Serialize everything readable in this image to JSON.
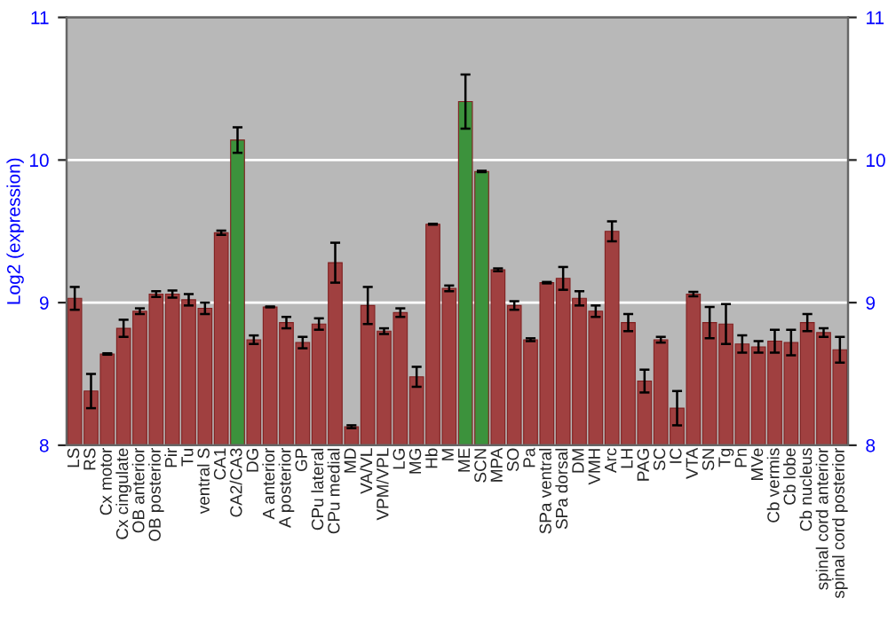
{
  "chart_data": {
    "type": "bar",
    "ylabel": "Log2 (expression)",
    "categories": [
      "LS",
      "RS",
      "Cx motor",
      "Cx cingulate",
      "OB anterior",
      "OB posterior",
      "Pir",
      "Tu",
      "ventral S",
      "CA1",
      "CA2/CA3",
      "DG",
      "A anterior",
      "A posterior",
      "GP",
      "CPu lateral",
      "CPu medial",
      "MD",
      "VA/VL",
      "VPM/VPL",
      "LG",
      "MG",
      "Hb",
      "M",
      "ME",
      "SCN",
      "MPA",
      "SO",
      "Pa",
      "SPa ventral",
      "SPa dorsal",
      "DM",
      "VMH",
      "Arc",
      "LH",
      "PAG",
      "SC",
      "IC",
      "VTA",
      "SN",
      "Tg",
      "Pn",
      "MVe",
      "Cb vermis",
      "Cb lobe",
      "Cb nucleus",
      "spinal cord anterior",
      "spinal cord posterior"
    ],
    "values": [
      9.03,
      8.38,
      8.64,
      8.82,
      8.94,
      9.06,
      9.06,
      9.02,
      8.96,
      9.49,
      10.14,
      8.74,
      8.97,
      8.86,
      8.72,
      8.85,
      9.28,
      8.13,
      8.98,
      8.8,
      8.93,
      8.48,
      9.55,
      9.1,
      10.41,
      9.92,
      9.23,
      8.98,
      8.74,
      9.14,
      9.17,
      9.03,
      8.94,
      9.5,
      8.86,
      8.45,
      8.74,
      8.26,
      9.06,
      8.86,
      8.85,
      8.71,
      8.69,
      8.73,
      8.72,
      8.86,
      8.79,
      8.67
    ],
    "errors": [
      0.08,
      0.12,
      0.005,
      0.06,
      0.02,
      0.02,
      0.025,
      0.04,
      0.04,
      0.015,
      0.09,
      0.03,
      0.003,
      0.04,
      0.04,
      0.04,
      0.14,
      0.01,
      0.13,
      0.02,
      0.03,
      0.07,
      0.003,
      0.02,
      0.19,
      0.005,
      0.01,
      0.03,
      0.01,
      0.005,
      0.08,
      0.05,
      0.04,
      0.07,
      0.06,
      0.08,
      0.02,
      0.12,
      0.015,
      0.11,
      0.14,
      0.06,
      0.04,
      0.08,
      0.09,
      0.06,
      0.03,
      0.09
    ],
    "colors": [
      "#b03030",
      "#b03030",
      "#b03030",
      "#b03030",
      "#b03030",
      "#b03030",
      "#b03030",
      "#b03030",
      "#b03030",
      "#b03030",
      "#2ea02e",
      "#b03030",
      "#b03030",
      "#b03030",
      "#b03030",
      "#b03030",
      "#b03030",
      "#b03030",
      "#b03030",
      "#b03030",
      "#b03030",
      "#b03030",
      "#b03030",
      "#b03030",
      "#2ea02e",
      "#2ea02e",
      "#b03030",
      "#b03030",
      "#b03030",
      "#b03030",
      "#b03030",
      "#b03030",
      "#b03030",
      "#b03030",
      "#b03030",
      "#b03030",
      "#b03030",
      "#b03030",
      "#b03030",
      "#b03030",
      "#b03030",
      "#b03030",
      "#b03030",
      "#b03030",
      "#b03030",
      "#b03030",
      "#b03030",
      "#b03030"
    ],
    "ylim": [
      8,
      11
    ],
    "yticks": [
      8,
      9,
      10,
      11
    ],
    "y2lim": [
      8,
      11
    ],
    "y2ticks": [
      8,
      9,
      10,
      11
    ],
    "grid": "y",
    "legend": false
  }
}
